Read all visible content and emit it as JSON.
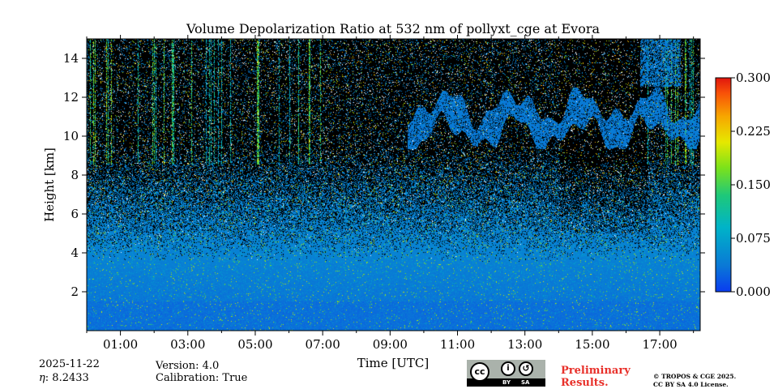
{
  "chart_data": {
    "type": "heatmap",
    "title": "Volume Depolarization Ratio at 532 nm of pollyxt_cge at Evora",
    "xlabel": "Time [UTC]",
    "ylabel": "Height [km]",
    "xlim": [
      0,
      18.2
    ],
    "ylim": [
      0,
      15
    ],
    "x_ticks": [
      1,
      3,
      5,
      7,
      9,
      11,
      13,
      15,
      17
    ],
    "x_tick_labels": [
      "01:00",
      "03:00",
      "05:00",
      "07:00",
      "09:00",
      "11:00",
      "13:00",
      "15:00",
      "17:00"
    ],
    "y_ticks": [
      2,
      4,
      6,
      8,
      10,
      12,
      14
    ],
    "y_tick_labels": [
      "2",
      "4",
      "6",
      "8",
      "10",
      "12",
      "14"
    ],
    "colorbar": {
      "range": [
        0.0,
        0.3
      ],
      "ticks": [
        0.0,
        0.075,
        0.15,
        0.225,
        0.3
      ],
      "tick_labels": [
        "0.000",
        "0.075",
        "0.150",
        "0.225",
        "0.300"
      ],
      "colormap": "jet"
    },
    "features": {
      "boundary_layer_top_km": 3.5,
      "noise_onset_km": 8,
      "cirrus_layer_km": [
        9.5,
        12
      ],
      "cirrus_time_range_h": [
        9.5,
        18.2
      ]
    }
  },
  "footer": {
    "date": "2025-11-22",
    "eta": ": 8.2433",
    "eta_symbol": "η",
    "version": "Version: 4.0",
    "calibration": "Calibration: True",
    "license_badge": {
      "cc": "cc",
      "by": "BY",
      "sa": "SA"
    },
    "preliminary_line1": "Preliminary",
    "preliminary_line2": "Results.",
    "copyright_line1": "© TROPOS & CGE 2025.",
    "copyright_line2": "CC BY SA 4.0 License."
  },
  "colors": {
    "background_noise": "#000000",
    "low_depol": "#0a78d6",
    "preliminary_text": "#e8302a"
  }
}
